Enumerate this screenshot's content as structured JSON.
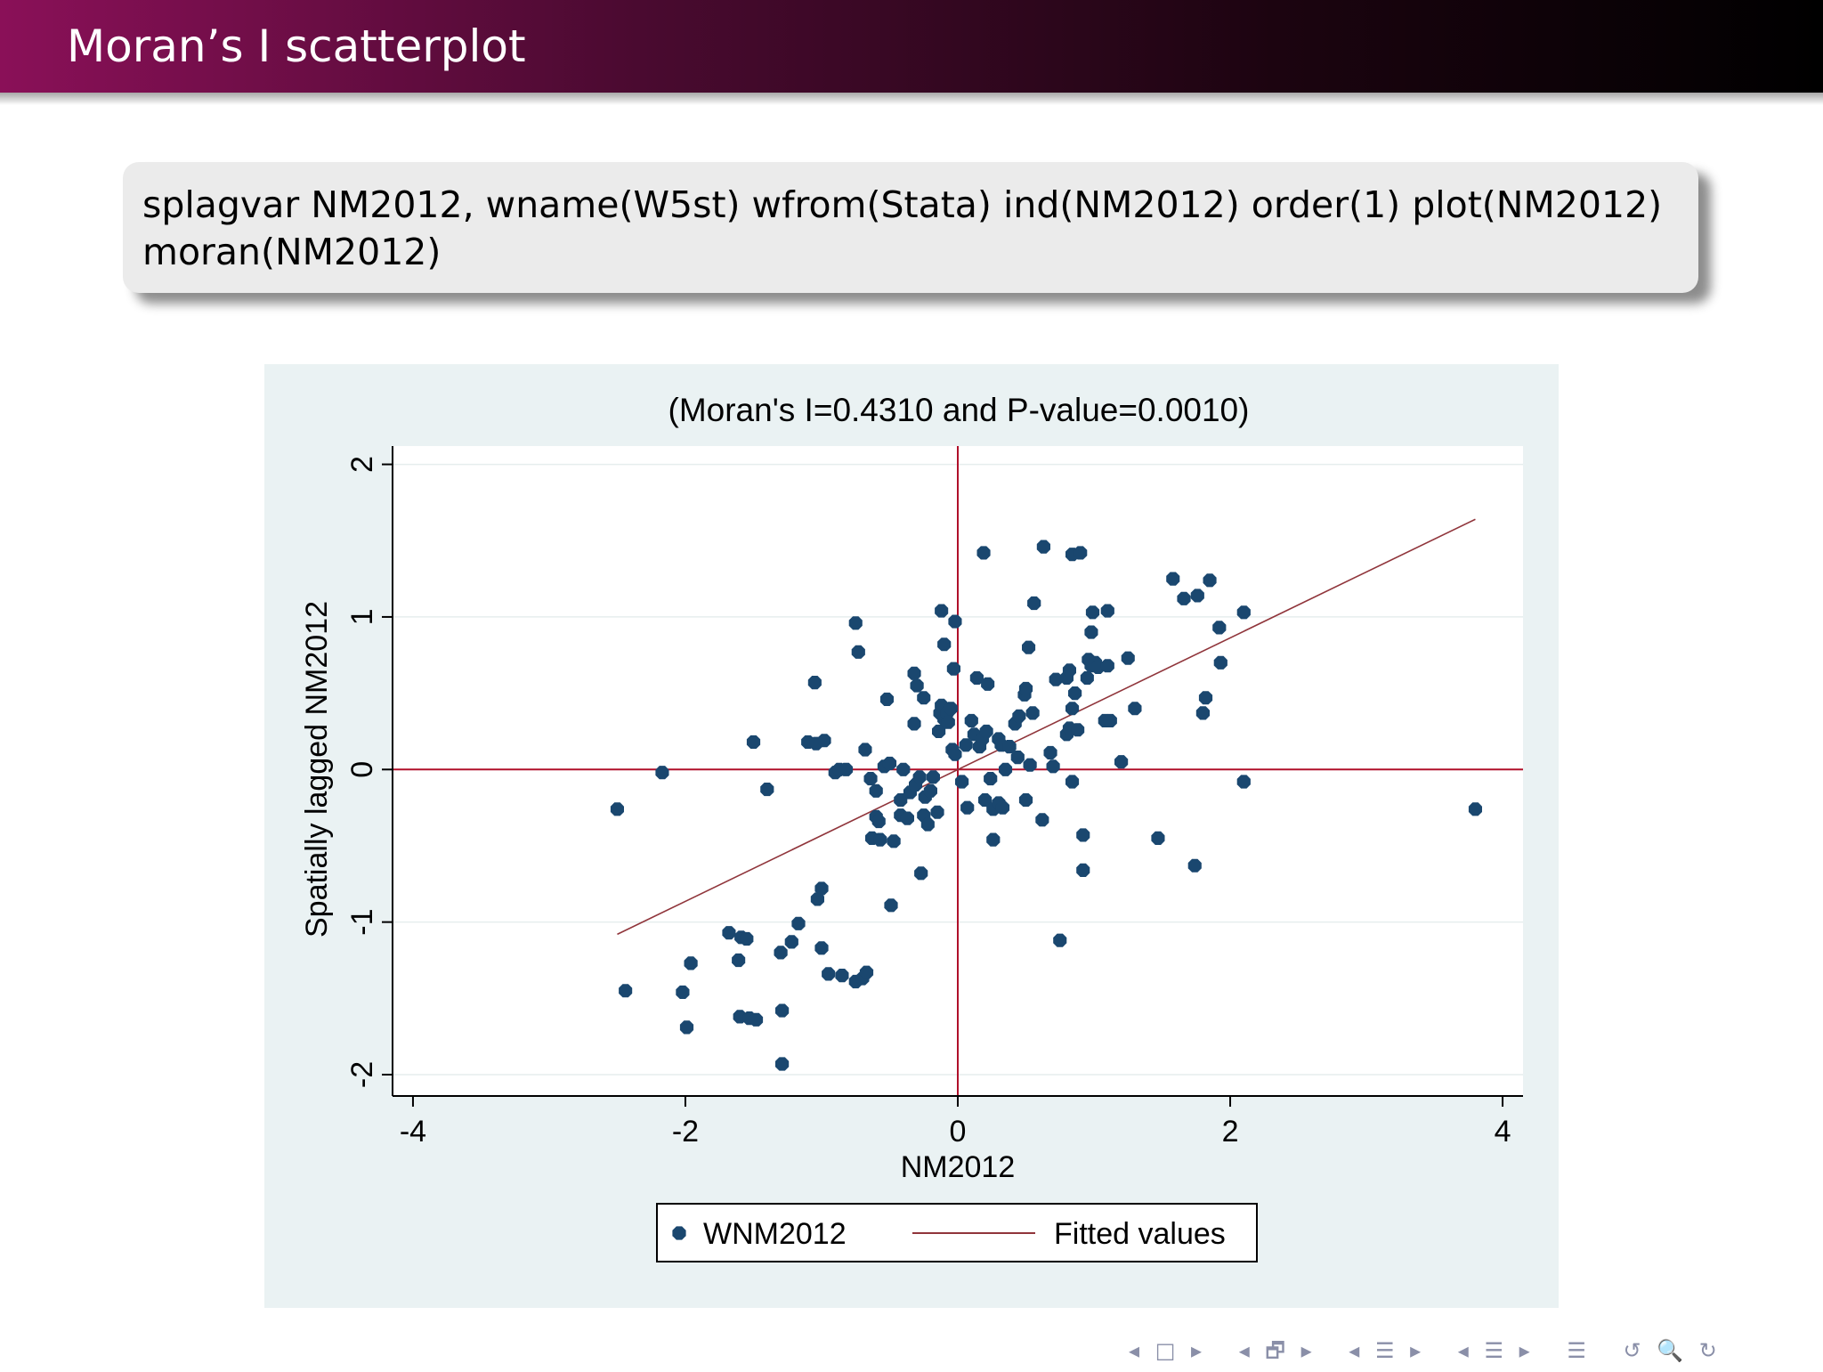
{
  "slide": {
    "title": "Moran’s I scatterplot",
    "code_lines": [
      "splagvar NM2012, wname(W5st) wfrom(Stata) ind(NM2012) order(1) plot(NM2012)",
      "moran(NM2012)"
    ]
  },
  "colors": {
    "header_start": "#8a1058",
    "header_end": "#000000",
    "figure_bg": "#eaf2f3",
    "plot_bg": "#ffffff",
    "marker": "#1a476f",
    "fit_line": "#90353b",
    "ref_line": "#b0102a"
  },
  "chart_data": {
    "type": "scatter",
    "title": "(Moran's I=0.4310 and P-value=0.0010)",
    "xlabel": "NM2012",
    "ylabel": "Spatially lagged NM2012",
    "xlim": [
      -4.15,
      4.15
    ],
    "ylim": [
      -2.14,
      2.12
    ],
    "xticks": [
      -4,
      -2,
      0,
      2,
      4
    ],
    "yticks": [
      -2,
      -1,
      0,
      1,
      2
    ],
    "grid": true,
    "reference_lines": {
      "x": 0,
      "y": 0
    },
    "legend": {
      "position": "bottom",
      "entries": [
        "WNM2012",
        "Fitted values"
      ]
    },
    "series": [
      {
        "name": "WNM2012",
        "kind": "points",
        "points": [
          [
            -2.5,
            -0.26
          ],
          [
            -2.44,
            -1.45
          ],
          [
            -2.17,
            -0.02
          ],
          [
            -2.02,
            -1.46
          ],
          [
            -1.99,
            -1.69
          ],
          [
            -1.96,
            -1.27
          ],
          [
            -1.68,
            -1.07
          ],
          [
            -1.61,
            -1.25
          ],
          [
            -1.6,
            -1.62
          ],
          [
            -1.59,
            -1.1
          ],
          [
            -1.55,
            -1.11
          ],
          [
            -1.53,
            -1.63
          ],
          [
            -1.48,
            -1.64
          ],
          [
            -1.5,
            0.18
          ],
          [
            -1.4,
            -0.13
          ],
          [
            -1.29,
            -1.58
          ],
          [
            -1.29,
            -1.93
          ],
          [
            -1.3,
            -1.2
          ],
          [
            -1.22,
            -1.13
          ],
          [
            -1.17,
            -1.01
          ],
          [
            -1.1,
            0.18
          ],
          [
            -1.05,
            0.57
          ],
          [
            -1.04,
            0.17
          ],
          [
            -0.98,
            0.19
          ],
          [
            -1.03,
            -0.85
          ],
          [
            -1.0,
            -0.78
          ],
          [
            -1.0,
            -1.17
          ],
          [
            -0.95,
            -1.34
          ],
          [
            -0.85,
            -1.35
          ],
          [
            -0.9,
            -0.02
          ],
          [
            -0.87,
            0.0
          ],
          [
            -0.82,
            0.0
          ],
          [
            -0.75,
            0.96
          ],
          [
            -0.73,
            0.77
          ],
          [
            -0.75,
            -1.39
          ],
          [
            -0.7,
            -1.37
          ],
          [
            -0.67,
            -1.33
          ],
          [
            -0.68,
            0.13
          ],
          [
            -0.64,
            -0.06
          ],
          [
            -0.6,
            -0.14
          ],
          [
            -0.63,
            -0.45
          ],
          [
            -0.6,
            -0.31
          ],
          [
            -0.58,
            -0.34
          ],
          [
            -0.57,
            -0.46
          ],
          [
            -0.54,
            0.02
          ],
          [
            -0.52,
            0.46
          ],
          [
            -0.5,
            0.04
          ],
          [
            -0.49,
            -0.89
          ],
          [
            -0.47,
            -0.47
          ],
          [
            -0.42,
            -0.2
          ],
          [
            -0.42,
            -0.3
          ],
          [
            -0.4,
            0.0
          ],
          [
            -0.37,
            -0.32
          ],
          [
            -0.35,
            -0.15
          ],
          [
            -0.32,
            0.63
          ],
          [
            -0.32,
            0.3
          ],
          [
            -0.31,
            -0.1
          ],
          [
            -0.3,
            0.55
          ],
          [
            -0.28,
            -0.05
          ],
          [
            -0.27,
            -0.68
          ],
          [
            -0.25,
            -0.3
          ],
          [
            -0.25,
            0.47
          ],
          [
            -0.24,
            -0.18
          ],
          [
            -0.22,
            -0.36
          ],
          [
            -0.2,
            -0.14
          ],
          [
            -0.18,
            -0.05
          ],
          [
            -0.15,
            -0.28
          ],
          [
            -0.14,
            0.25
          ],
          [
            -0.13,
            0.37
          ],
          [
            -0.12,
            0.42
          ],
          [
            -0.12,
            1.04
          ],
          [
            -0.1,
            0.33
          ],
          [
            -0.1,
            0.82
          ],
          [
            -0.08,
            0.37
          ],
          [
            -0.07,
            0.31
          ],
          [
            -0.05,
            0.4
          ],
          [
            -0.04,
            0.13
          ],
          [
            -0.03,
            0.66
          ],
          [
            -0.02,
            0.97
          ],
          [
            -0.02,
            0.1
          ],
          [
            0.03,
            -0.08
          ],
          [
            0.06,
            0.16
          ],
          [
            0.07,
            -0.25
          ],
          [
            0.1,
            0.32
          ],
          [
            0.12,
            0.23
          ],
          [
            0.14,
            0.6
          ],
          [
            0.16,
            0.15
          ],
          [
            0.18,
            0.2
          ],
          [
            0.19,
            1.42
          ],
          [
            0.2,
            -0.2
          ],
          [
            0.21,
            0.25
          ],
          [
            0.22,
            0.56
          ],
          [
            0.24,
            -0.06
          ],
          [
            0.26,
            -0.26
          ],
          [
            0.26,
            -0.46
          ],
          [
            0.3,
            -0.22
          ],
          [
            0.3,
            0.2
          ],
          [
            0.32,
            0.16
          ],
          [
            0.33,
            -0.25
          ],
          [
            0.35,
            0.0
          ],
          [
            0.38,
            0.15
          ],
          [
            0.42,
            0.3
          ],
          [
            0.44,
            0.08
          ],
          [
            0.45,
            0.35
          ],
          [
            0.49,
            0.49
          ],
          [
            0.5,
            0.53
          ],
          [
            0.5,
            -0.2
          ],
          [
            0.52,
            0.8
          ],
          [
            0.53,
            0.03
          ],
          [
            0.55,
            0.37
          ],
          [
            0.56,
            1.09
          ],
          [
            0.62,
            -0.33
          ],
          [
            0.63,
            1.46
          ],
          [
            0.68,
            0.11
          ],
          [
            0.7,
            0.02
          ],
          [
            0.72,
            0.59
          ],
          [
            0.75,
            -1.12
          ],
          [
            0.8,
            0.23
          ],
          [
            0.8,
            0.6
          ],
          [
            0.82,
            0.65
          ],
          [
            0.82,
            0.27
          ],
          [
            0.84,
            0.4
          ],
          [
            0.84,
            -0.08
          ],
          [
            0.84,
            1.41
          ],
          [
            0.86,
            0.5
          ],
          [
            0.88,
            0.26
          ],
          [
            0.9,
            1.42
          ],
          [
            0.92,
            -0.66
          ],
          [
            0.92,
            -0.43
          ],
          [
            0.95,
            0.6
          ],
          [
            0.96,
            0.72
          ],
          [
            0.98,
            0.68
          ],
          [
            0.98,
            0.9
          ],
          [
            0.99,
            1.03
          ],
          [
            1.01,
            0.7
          ],
          [
            1.03,
            0.67
          ],
          [
            1.08,
            0.32
          ],
          [
            1.1,
            1.04
          ],
          [
            1.1,
            0.68
          ],
          [
            1.12,
            0.32
          ],
          [
            1.2,
            0.05
          ],
          [
            1.25,
            0.73
          ],
          [
            1.3,
            0.4
          ],
          [
            1.47,
            -0.45
          ],
          [
            1.58,
            1.25
          ],
          [
            1.66,
            1.12
          ],
          [
            1.74,
            -0.63
          ],
          [
            1.76,
            1.14
          ],
          [
            1.8,
            0.37
          ],
          [
            1.82,
            0.47
          ],
          [
            1.85,
            1.24
          ],
          [
            1.92,
            0.93
          ],
          [
            1.93,
            0.7
          ],
          [
            2.1,
            -0.08
          ],
          [
            2.1,
            1.03
          ],
          [
            3.8,
            -0.26
          ]
        ]
      },
      {
        "name": "Fitted values",
        "kind": "line",
        "points": [
          [
            -2.5,
            -1.08
          ],
          [
            3.8,
            1.64
          ]
        ]
      }
    ]
  },
  "navigation": {
    "items": [
      "◂",
      "□",
      "▸",
      "◂",
      "🗗",
      "▸",
      "◂",
      "☰",
      "▸",
      "◂",
      "☰",
      "▸",
      "☰",
      "↺",
      "🔍",
      "↻"
    ]
  }
}
